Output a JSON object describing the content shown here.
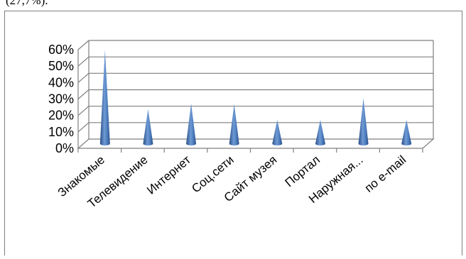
{
  "caption": "(27,7%).",
  "chart_data": {
    "type": "bar",
    "style": "3d-cone",
    "categories": [
      "Знакомые",
      "Телевидение",
      "Интернет",
      "Соц.сети",
      "Сайт музея",
      "Портал",
      "Наружная...",
      "по e-mail"
    ],
    "values": [
      0.572,
      0.21,
      0.245,
      0.242,
      0.145,
      0.145,
      0.277,
      0.145
    ],
    "ylim": [
      0,
      0.6
    ],
    "yticks": [
      "0%",
      "10%",
      "20%",
      "30%",
      "40%",
      "50%",
      "60%"
    ],
    "grid": true,
    "title": "",
    "xlabel": "",
    "ylabel": "",
    "bar_color": "#4f81bd"
  }
}
